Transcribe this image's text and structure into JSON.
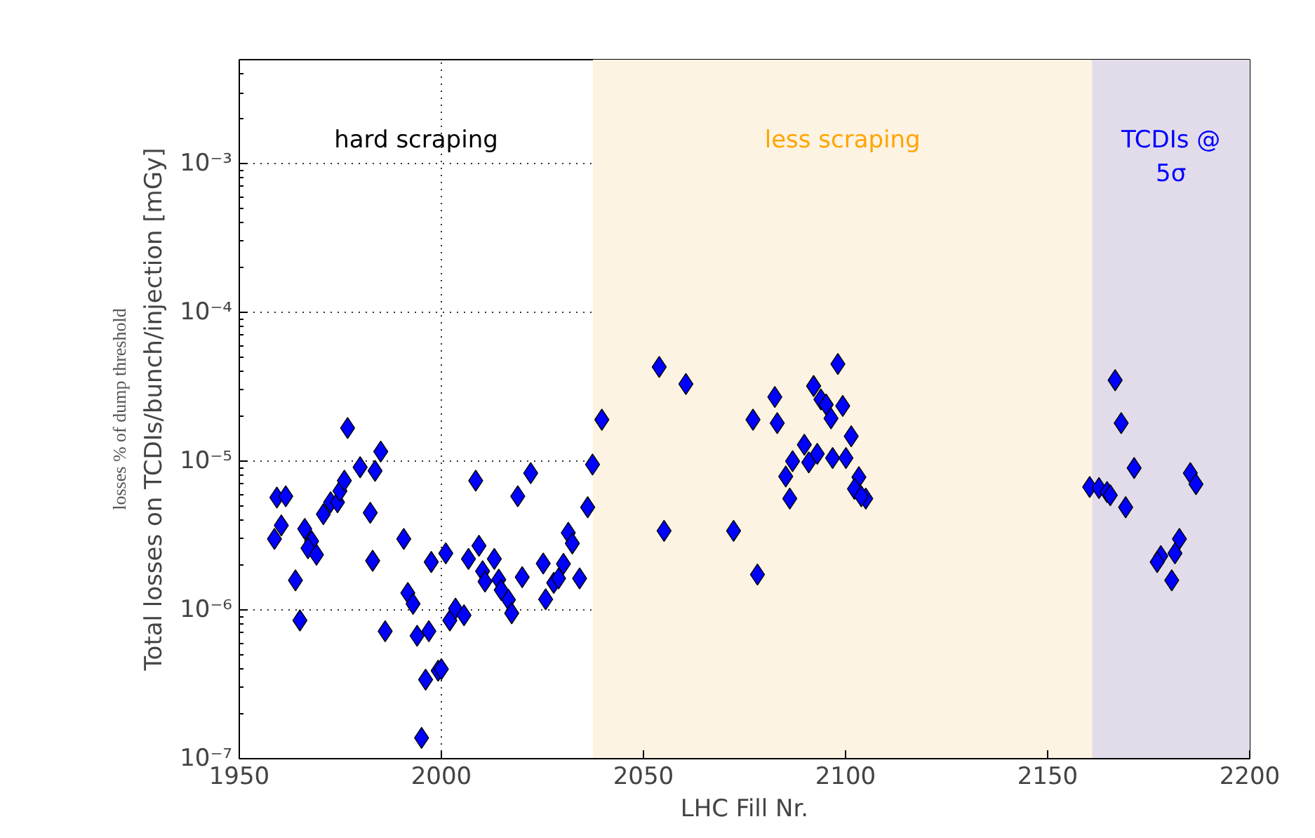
{
  "chart_data": {
    "type": "scatter",
    "xlabel": "LHC Fill Nr.",
    "ylabel": "Total losses on TCDIs/bunch/injection [mGy]",
    "log": "y",
    "grid": true,
    "marker": "diamond",
    "xlim": [
      1950,
      2200
    ],
    "ylim": [
      1e-07,
      0.005
    ],
    "xticks": [
      1950,
      2000,
      2050,
      2100,
      2150,
      2200
    ],
    "yticks": [
      {
        "value": 1e-07,
        "label": "10⁻⁷"
      },
      {
        "value": 1e-06,
        "label": "10⁻⁶"
      },
      {
        "value": 1e-05,
        "label": "10⁻⁵"
      },
      {
        "value": 0.0001,
        "label": "10⁻⁴"
      },
      {
        "value": 0.001,
        "label": "10⁻³"
      }
    ],
    "bands": [
      {
        "axis": "x",
        "from": 2037.5,
        "to": 2161,
        "label": "less scraping",
        "color": "#fdf3e3"
      },
      {
        "axis": "x",
        "from": 2161,
        "to": 2200,
        "label": "TCDIs @\n5σ",
        "color": "#e2dcea"
      }
    ],
    "annotations": [
      "hard scraping",
      "losses % of dump threshold"
    ],
    "series": [
      {
        "color": "#0000ff",
        "x": [
          1976.8,
          1959.3,
          1961.5,
          1960.4,
          1958.7,
          1963.9,
          1965,
          1966.2,
          1967.9,
          1967,
          1969.1,
          1970.8,
          1972.6,
          1974.3,
          1974.9,
          1976,
          1979.9,
          1983.6,
          1985,
          1982.4,
          1983,
          1986.1,
          1990.7,
          1991.7,
          1993,
          1994,
          1996.9,
          1996.1,
          1999.2,
          2000,
          1995.1,
          1997.5,
          2001.1,
          2002.1,
          2003.5,
          2005.6,
          2008.5,
          2006.7,
          2009.3,
          2010.2,
          2013.1,
          2010.8,
          2014.2,
          2014.8,
          2016.6,
          2017.4,
          2018.9,
          2022.1,
          2020,
          2025.2,
          2025.8,
          2027.8,
          2029,
          2030.2,
          2031.4,
          2032.4,
          2034.2,
          2036.2,
          2037.4,
          2039.7,
          2053.9,
          2060.5,
          2055.1,
          2072.3,
          2078.2,
          2077.1,
          2082.5,
          2083.1,
          2098.1,
          2092.1,
          2093.9,
          2095.2,
          2096.4,
          2099.3,
          2101.4,
          2089.8,
          2086.9,
          2090.9,
          2093,
          2096.8,
          2100.1,
          2085.2,
          2086.2,
          2103.3,
          2102.2,
          2105,
          2103.9,
          2166.7,
          2168.2,
          2171.4,
          2160.4,
          2162.7,
          2164.7,
          2165.5,
          2169.3,
          2185.3,
          2186.7,
          2182.6,
          2181.5,
          2178,
          2177.1,
          2180.7
        ],
        "values": [
          1.67e-05,
          5.7e-06,
          5.8e-06,
          3.7e-06,
          3e-06,
          1.58e-06,
          8.5e-07,
          3.5e-06,
          2.9e-06,
          2.6e-06,
          2.35e-06,
          4.4e-06,
          5.3e-06,
          5.3e-06,
          6.3e-06,
          7.4e-06,
          9.1e-06,
          8.6e-06,
          1.16e-05,
          4.5e-06,
          2.14e-06,
          7.2e-07,
          3e-06,
          1.3e-06,
          1.1e-06,
          6.7e-07,
          7.2e-07,
          3.4e-07,
          3.9e-07,
          4e-07,
          1.38e-07,
          2.1e-06,
          2.4e-06,
          8.5e-07,
          1.02e-06,
          9.2e-07,
          7.4e-06,
          2.2e-06,
          2.7e-06,
          1.82e-06,
          2.2e-06,
          1.55e-06,
          1.6e-06,
          1.36e-06,
          1.17e-06,
          9.5e-07,
          5.8e-06,
          8.3e-06,
          1.66e-06,
          2.05e-06,
          1.18e-06,
          1.52e-06,
          1.63e-06,
          2.04e-06,
          3.3e-06,
          2.8e-06,
          1.63e-06,
          4.9e-06,
          9.5e-06,
          1.9e-05,
          4.3e-05,
          3.3e-05,
          3.4e-06,
          3.4e-06,
          1.73e-06,
          1.9e-05,
          2.7e-05,
          1.8e-05,
          4.5e-05,
          3.2e-05,
          2.6e-05,
          2.4e-05,
          1.94e-05,
          2.35e-05,
          1.47e-05,
          1.29e-05,
          1e-05,
          9.8e-06,
          1.12e-05,
          1.05e-05,
          1.05e-05,
          7.9e-06,
          5.6e-06,
          7.8e-06,
          6.5e-06,
          5.6e-06,
          5.8e-06,
          3.5e-05,
          1.8e-05,
          9e-06,
          6.7e-06,
          6.6e-06,
          6.2e-06,
          5.9e-06,
          4.9e-06,
          8.3e-06,
          7e-06,
          3e-06,
          2.4e-06,
          2.3e-06,
          2.1e-06,
          1.58e-06
        ]
      }
    ]
  }
}
